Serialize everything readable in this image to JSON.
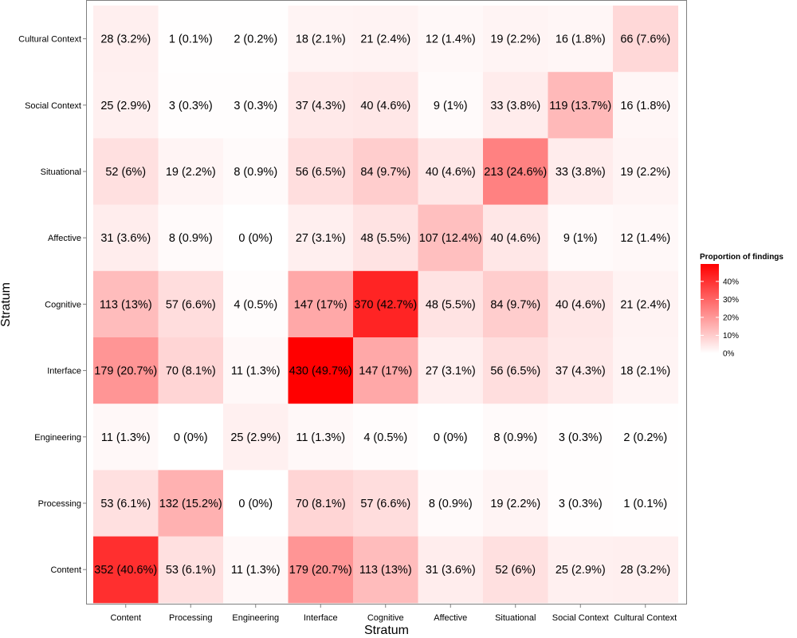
{
  "chart_data": {
    "type": "heatmap",
    "xlabel": "Stratum",
    "ylabel": "Stratum",
    "x_categories": [
      "Content",
      "Processing",
      "Engineering",
      "Interface",
      "Cognitive",
      "Affective",
      "Situational",
      "Social Context",
      "Cultural Context"
    ],
    "y_categories": [
      "Content",
      "Processing",
      "Engineering",
      "Interface",
      "Cognitive",
      "Affective",
      "Situational",
      "Social Context",
      "Cultural Context"
    ],
    "y_order_note": "y_categories listed bottom to top",
    "rows": [
      {
        "y": "Cultural Context",
        "counts": [
          28,
          1,
          2,
          18,
          21,
          12,
          19,
          16,
          66
        ],
        "percents": [
          3.2,
          0.1,
          0.2,
          2.1,
          2.4,
          1.4,
          2.2,
          1.8,
          7.6
        ],
        "labels": [
          "28 (3.2%)",
          "1 (0.1%)",
          "2 (0.2%)",
          "18 (2.1%)",
          "21 (2.4%)",
          "12 (1.4%)",
          "19 (2.2%)",
          "16 (1.8%)",
          "66 (7.6%)"
        ]
      },
      {
        "y": "Social Context",
        "counts": [
          25,
          3,
          3,
          37,
          40,
          9,
          33,
          119,
          16
        ],
        "percents": [
          2.9,
          0.3,
          0.3,
          4.3,
          4.6,
          1,
          3.8,
          13.7,
          1.8
        ],
        "labels": [
          "25 (2.9%)",
          "3 (0.3%)",
          "3 (0.3%)",
          "37 (4.3%)",
          "40 (4.6%)",
          "9 (1%)",
          "33 (3.8%)",
          "119 (13.7%)",
          "16 (1.8%)"
        ]
      },
      {
        "y": "Situational",
        "counts": [
          52,
          19,
          8,
          56,
          84,
          40,
          213,
          33,
          19
        ],
        "percents": [
          6,
          2.2,
          0.9,
          6.5,
          9.7,
          4.6,
          24.6,
          3.8,
          2.2
        ],
        "labels": [
          "52 (6%)",
          "19 (2.2%)",
          "8 (0.9%)",
          "56 (6.5%)",
          "84 (9.7%)",
          "40 (4.6%)",
          "213 (24.6%)",
          "33 (3.8%)",
          "19 (2.2%)"
        ]
      },
      {
        "y": "Affective",
        "counts": [
          31,
          8,
          0,
          27,
          48,
          107,
          40,
          9,
          12
        ],
        "percents": [
          3.6,
          0.9,
          0,
          3.1,
          5.5,
          12.4,
          4.6,
          1,
          1.4
        ],
        "labels": [
          "31 (3.6%)",
          "8 (0.9%)",
          "0 (0%)",
          "27 (3.1%)",
          "48 (5.5%)",
          "107 (12.4%)",
          "40 (4.6%)",
          "9 (1%)",
          "12 (1.4%)"
        ]
      },
      {
        "y": "Cognitive",
        "counts": [
          113,
          57,
          4,
          147,
          370,
          48,
          84,
          40,
          21
        ],
        "percents": [
          13,
          6.6,
          0.5,
          17,
          42.7,
          5.5,
          9.7,
          4.6,
          2.4
        ],
        "labels": [
          "113 (13%)",
          "57 (6.6%)",
          "4 (0.5%)",
          "147 (17%)",
          "370 (42.7%)",
          "48 (5.5%)",
          "84 (9.7%)",
          "40 (4.6%)",
          "21 (2.4%)"
        ]
      },
      {
        "y": "Interface",
        "counts": [
          179,
          70,
          11,
          430,
          147,
          27,
          56,
          37,
          18
        ],
        "percents": [
          20.7,
          8.1,
          1.3,
          49.7,
          17,
          3.1,
          6.5,
          4.3,
          2.1
        ],
        "labels": [
          "179 (20.7%)",
          "70 (8.1%)",
          "11 (1.3%)",
          "430 (49.7%)",
          "147 (17%)",
          "27 (3.1%)",
          "56 (6.5%)",
          "37 (4.3%)",
          "18 (2.1%)"
        ]
      },
      {
        "y": "Engineering",
        "counts": [
          11,
          0,
          25,
          11,
          4,
          0,
          8,
          3,
          2
        ],
        "percents": [
          1.3,
          0,
          2.9,
          1.3,
          0.5,
          0,
          0.9,
          0.3,
          0.2
        ],
        "labels": [
          "11 (1.3%)",
          "0 (0%)",
          "25 (2.9%)",
          "11 (1.3%)",
          "4 (0.5%)",
          "0 (0%)",
          "8 (0.9%)",
          "3 (0.3%)",
          "2 (0.2%)"
        ]
      },
      {
        "y": "Processing",
        "counts": [
          53,
          132,
          0,
          70,
          57,
          8,
          19,
          3,
          1
        ],
        "percents": [
          6.1,
          15.2,
          0,
          8.1,
          6.6,
          0.9,
          2.2,
          0.3,
          0.1
        ],
        "labels": [
          "53 (6.1%)",
          "132 (15.2%)",
          "0 (0%)",
          "70 (8.1%)",
          "57 (6.6%)",
          "8 (0.9%)",
          "19 (2.2%)",
          "3 (0.3%)",
          "1 (0.1%)"
        ]
      },
      {
        "y": "Content",
        "counts": [
          352,
          53,
          11,
          179,
          113,
          31,
          52,
          25,
          28
        ],
        "percents": [
          40.6,
          6.1,
          1.3,
          20.7,
          13,
          3.6,
          6,
          2.9,
          3.2
        ],
        "labels": [
          "352 (40.6%)",
          "53 (6.1%)",
          "11 (1.3%)",
          "179 (20.7%)",
          "113 (13%)",
          "31 (3.6%)",
          "52 (6%)",
          "25 (2.9%)",
          "28 (3.2%)"
        ]
      }
    ],
    "color_scale": {
      "low": "#ffffff",
      "high": "#ff0000",
      "domain": [
        0,
        49.7
      ]
    },
    "legend": {
      "title": "Proportion of findings",
      "ticks": [
        {
          "value": 40,
          "label": "40%"
        },
        {
          "value": 30,
          "label": "30%"
        },
        {
          "value": 20,
          "label": "20%"
        },
        {
          "value": 10,
          "label": "10%"
        },
        {
          "value": 0,
          "label": "0%"
        }
      ],
      "position": "right"
    },
    "grid": false,
    "panel_border": "#7f7f7f"
  }
}
